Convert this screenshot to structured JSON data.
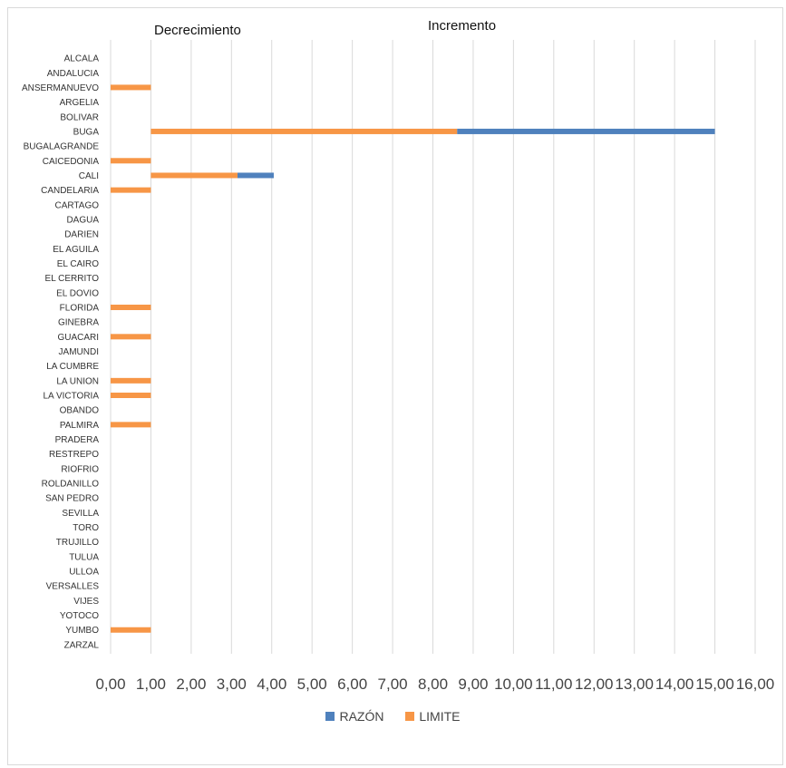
{
  "chart_data": {
    "type": "bar",
    "orientation": "horizontal",
    "stacked": true,
    "annotations": [
      "Decrecimiento",
      "Incremento"
    ],
    "categories": [
      "ALCALA",
      "ANDALUCIA",
      "ANSERMANUEVO",
      "ARGELIA",
      "BOLIVAR",
      "BUGA",
      "BUGALAGRANDE",
      "CAICEDONIA",
      "CALI",
      "CANDELARIA",
      "CARTAGO",
      "DAGUA",
      "DARIEN",
      "EL AGUILA",
      "EL CAIRO",
      "EL CERRITO",
      "EL DOVIO",
      "FLORIDA",
      "GINEBRA",
      "GUACARI",
      "JAMUNDI",
      "LA CUMBRE",
      "LA UNION",
      "LA VICTORIA",
      "OBANDO",
      "PALMIRA",
      "PRADERA",
      "RESTREPO",
      "RIOFRIO",
      "ROLDANILLO",
      "SAN PEDRO",
      "SEVILLA",
      "TORO",
      "TRUJILLO",
      "TULUA",
      "ULLOA",
      "VERSALLES",
      "VIJES",
      "YOTOCO",
      "YUMBO",
      "ZARZAL"
    ],
    "series": [
      {
        "name": "RAZÓN",
        "color": "#4f81bd",
        "segments": {
          "BUGA": [
            8.6,
            15.0
          ],
          "CALI": [
            3.15,
            4.05
          ]
        }
      },
      {
        "name": "LIMITE",
        "color": "#f79646",
        "segments": {
          "ANSERMANUEVO": [
            0,
            1
          ],
          "BUGA": [
            1,
            8.6
          ],
          "CAICEDONIA": [
            0,
            1
          ],
          "CALI": [
            1,
            3.15
          ],
          "CANDELARIA": [
            0,
            1
          ],
          "FLORIDA": [
            0,
            1
          ],
          "GUACARI": [
            0,
            1
          ],
          "LA UNION": [
            0,
            1
          ],
          "LA VICTORIA": [
            0,
            1
          ],
          "PALMIRA": [
            0,
            1
          ],
          "YUMBO": [
            0,
            1
          ]
        }
      }
    ],
    "xlim": [
      0,
      16
    ],
    "xticks": [
      "0,00",
      "1,00",
      "2,00",
      "3,00",
      "4,00",
      "5,00",
      "6,00",
      "7,00",
      "8,00",
      "9,00",
      "10,00",
      "11,00",
      "12,00",
      "13,00",
      "14,00",
      "15,00",
      "16,00"
    ],
    "grid": "vertical",
    "legend_position": "bottom"
  }
}
